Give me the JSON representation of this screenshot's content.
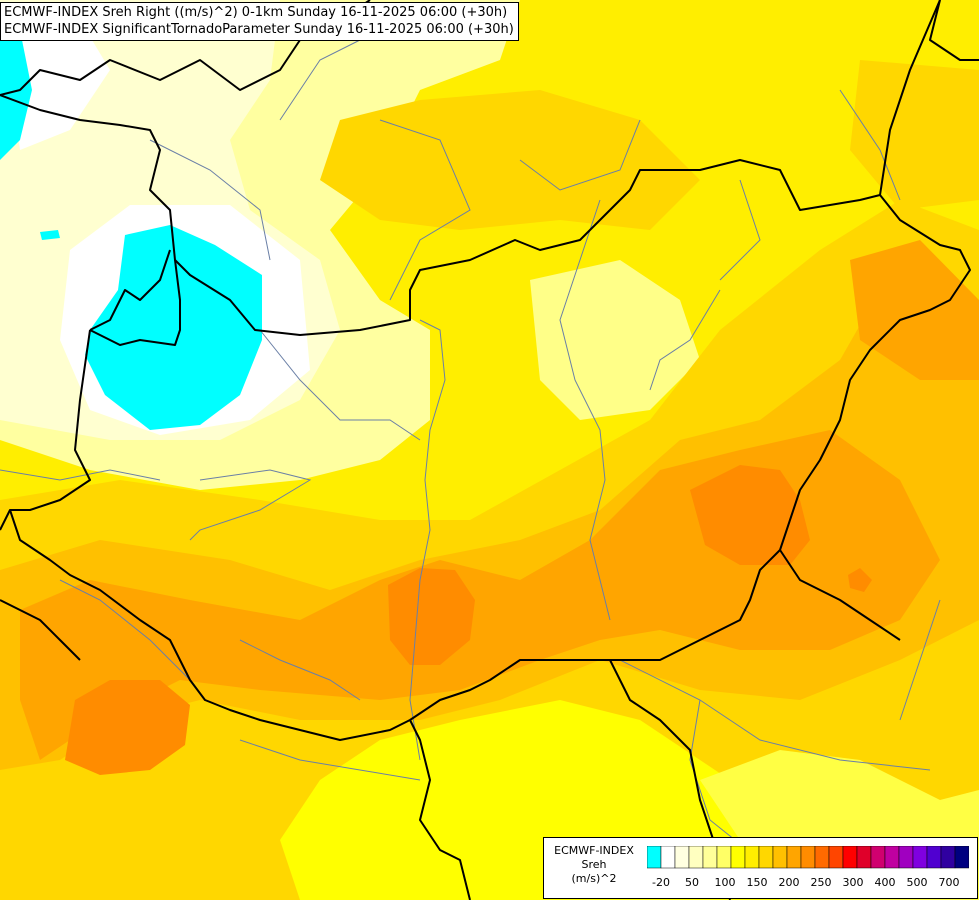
{
  "header": {
    "line1": "ECMWF-INDEX Sreh Right ((m/s)^2) 0-1km Sunday 16-11-2025 06:00 (+30h)",
    "line2": "ECMWF-INDEX SignificantTornadoParameter Sunday 16-11-2025 06:00 (+30h)"
  },
  "legend": {
    "title_line1": "ECMWF-INDEX",
    "title_line2": "Sreh",
    "title_line3": "(m/s)^2",
    "colors": [
      "#00ffff",
      "#ffffff",
      "#ffffe0",
      "#ffffc0",
      "#ffff99",
      "#ffff66",
      "#ffff00",
      "#ffee00",
      "#ffd700",
      "#ffc000",
      "#ffa500",
      "#ff8c00",
      "#ff6a00",
      "#ff4500",
      "#ff0000",
      "#e0002a",
      "#d0006f",
      "#c000a0",
      "#a000c0",
      "#8000e0",
      "#5000d0",
      "#3000a0",
      "#000080"
    ],
    "labels": [
      "-20",
      "50",
      "100",
      "150",
      "200",
      "250",
      "300",
      "400",
      "500",
      "700"
    ]
  },
  "map": {
    "colors": {
      "cyan": "#00ffff",
      "white": "#ffffff",
      "pale": "#ffffc0",
      "light_yellow": "#ffff99",
      "yellow": "#ffff00",
      "gold": "#ffd700",
      "orange_light": "#ffc000",
      "orange": "#ffa500",
      "orange_dark": "#ff8c00",
      "border": "#000000",
      "river": "#6a7fa6"
    }
  }
}
